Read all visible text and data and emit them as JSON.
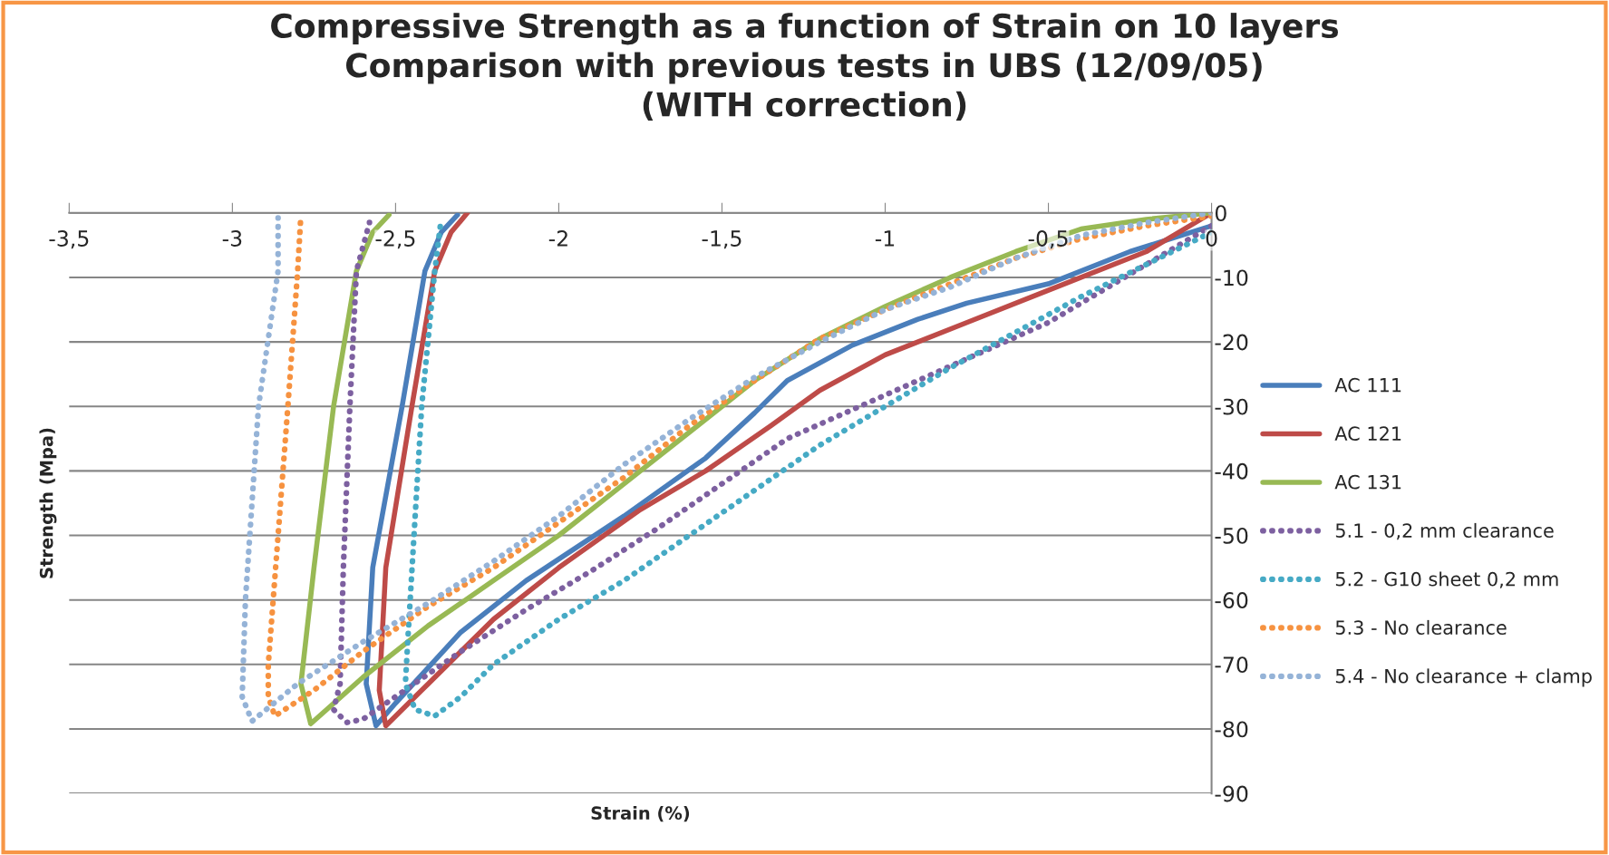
{
  "chart_data": {
    "type": "line",
    "title": "Compressive Strength as a function of Strain on 10 layers\nComparison with previous tests in UBS (12/09/05)\n(WITH correction)",
    "xlabel": "Strain (%)",
    "ylabel": "Strength (Mpa)",
    "xlim": [
      -3.5,
      0
    ],
    "ylim": [
      -90,
      0
    ],
    "xticks": [
      {
        "value": -3.5,
        "label": "-3,5"
      },
      -3,
      {
        "value": -2.5,
        "label": "-2,5"
      },
      -2,
      {
        "value": -1.5,
        "label": "-1,5"
      },
      -1,
      {
        "value": -0.5,
        "label": "-0,5"
      },
      0
    ],
    "yticks": [
      0,
      -10,
      -20,
      -30,
      -40,
      -50,
      -60,
      -70,
      -80,
      -90
    ],
    "grid": "y",
    "legend": "right",
    "marker": "none",
    "series": [
      {
        "name": "AC 111",
        "color": "#4a7ebb",
        "line_style": "solid",
        "x": [
          0,
          -0.25,
          -0.5,
          -0.75,
          -0.9,
          -1.1,
          -1.3,
          -1.4,
          -1.55,
          -1.8,
          -2.1,
          -2.3,
          -2.5,
          -2.56,
          -2.59,
          -2.57,
          -2.48,
          -2.41,
          -2.36,
          -2.31
        ],
        "values": [
          -2,
          -6,
          -11,
          -14,
          -16.5,
          -20.5,
          -26,
          -31,
          -38,
          -47,
          -57,
          -65,
          -76,
          -79.5,
          -73,
          -55,
          -30,
          -9,
          -3,
          -0.3
        ]
      },
      {
        "name": "AC 121",
        "color": "#be4b48",
        "line_style": "solid",
        "x": [
          0,
          -0.1,
          -0.2,
          -0.5,
          -0.75,
          -0.9,
          -1,
          -1.2,
          -1.35,
          -1.55,
          -1.75,
          -2,
          -2.2,
          -2.4,
          -2.53,
          -2.55,
          -2.53,
          -2.45,
          -2.38,
          -2.33,
          -2.28
        ],
        "values": [
          0,
          -3,
          -6,
          -12,
          -17,
          -20,
          -22,
          -27.5,
          -33,
          -40,
          -46,
          -55,
          -63,
          -73,
          -79.5,
          -74,
          -55,
          -30,
          -9,
          -3,
          0
        ]
      },
      {
        "name": "AC 131",
        "color": "#98b954",
        "line_style": "solid",
        "x": [
          0,
          -0.2,
          -0.4,
          -0.6,
          -0.8,
          -1,
          -1.2,
          -1.4,
          -1.6,
          -1.8,
          -2,
          -2.2,
          -2.4,
          -2.6,
          -2.76,
          -2.79,
          -2.75,
          -2.69,
          -2.62,
          -2.57,
          -2.52
        ],
        "values": [
          0,
          -1,
          -2.5,
          -6,
          -10,
          -14.5,
          -19.5,
          -26,
          -34,
          -42,
          -50,
          -57,
          -64,
          -72,
          -79.2,
          -73,
          -55,
          -30,
          -9,
          -3,
          -0.3
        ]
      },
      {
        "name": "5.1 - 0,2 mm clearance",
        "color": "#7d60a0",
        "line_style": "dotted",
        "x": [
          0,
          -0.1,
          -0.3,
          -0.5,
          -0.7,
          -0.9,
          -1.1,
          -1.3,
          -1.5,
          -1.7,
          -1.9,
          -2.1,
          -2.3,
          -2.5,
          -2.6,
          -2.65,
          -2.69,
          -2.67,
          -2.66,
          -2.64,
          -2.62,
          -2.58
        ],
        "values": [
          -2,
          -5,
          -11,
          -17,
          -21.5,
          -26,
          -30.5,
          -35,
          -42,
          -49,
          -55.5,
          -61.5,
          -68,
          -75,
          -78.5,
          -79,
          -77,
          -73,
          -55,
          -30,
          -9,
          -1.5
        ]
      },
      {
        "name": "5.2 - G10 sheet 0,2 mm",
        "color": "#46aac5",
        "line_style": "dotted",
        "x": [
          0,
          -0.2,
          -0.4,
          -0.6,
          -0.8,
          -1,
          -1.2,
          -1.4,
          -1.6,
          -1.8,
          -2,
          -2.2,
          -2.3,
          -2.38,
          -2.44,
          -2.47,
          -2.46,
          -2.42,
          -2.38,
          -2.36
        ],
        "values": [
          -3,
          -8,
          -13,
          -18.5,
          -24,
          -30,
          -36,
          -43,
          -50,
          -57,
          -63,
          -70,
          -75,
          -78,
          -77,
          -73,
          -64,
          -30,
          -9,
          -0.8
        ]
      },
      {
        "name": "5.3 - No clearance",
        "color": "#f69240",
        "line_style": "dotted",
        "x": [
          0,
          -0.2,
          -0.4,
          -0.6,
          -0.8,
          -1,
          -1.2,
          -1.4,
          -1.6,
          -1.8,
          -2,
          -2.2,
          -2.4,
          -2.6,
          -2.75,
          -2.87,
          -2.89,
          -2.89,
          -2.86,
          -2.83,
          -2.8,
          -2.79
        ],
        "values": [
          -0.5,
          -2,
          -4,
          -7,
          -11,
          -15,
          -19.5,
          -26,
          -33,
          -41,
          -48,
          -55,
          -61,
          -68,
          -74,
          -78,
          -75,
          -70,
          -50,
          -30,
          -9,
          -0.2
        ]
      },
      {
        "name": "5.4 - No clearance + clamp",
        "color": "#95b3d7",
        "line_style": "dotted",
        "x": [
          0,
          -0.2,
          -0.4,
          -0.6,
          -0.8,
          -1,
          -1.2,
          -1.4,
          -1.6,
          -1.8,
          -2,
          -2.2,
          -2.4,
          -2.6,
          -2.8,
          -2.94,
          -2.97,
          -2.96,
          -2.94,
          -2.92,
          -2.86,
          -2.86
        ],
        "values": [
          0,
          -1.5,
          -3.5,
          -7,
          -11.5,
          -15,
          -20,
          -25.5,
          -32,
          -39,
          -47,
          -54,
          -60.5,
          -66.5,
          -73,
          -78.8,
          -75,
          -60,
          -45,
          -30,
          -9,
          -0.8
        ]
      }
    ]
  }
}
